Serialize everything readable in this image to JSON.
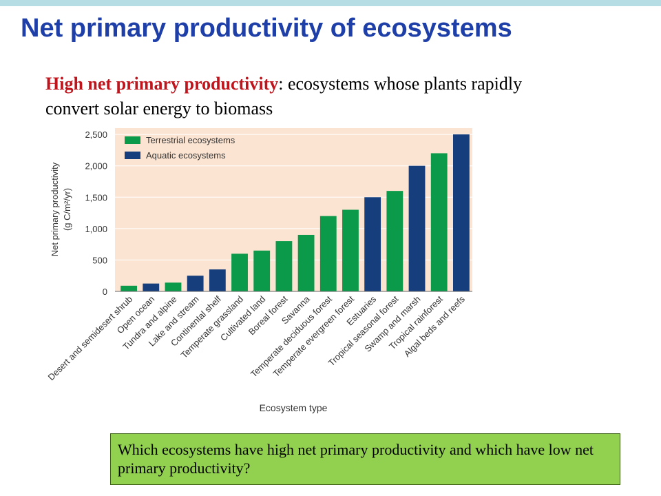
{
  "slide": {
    "title": "Net primary productivity of ecosystems",
    "definition_term": "High net primary productivity",
    "definition_rest": ": ecosystems whose plants rapidly convert solar energy to biomass",
    "question": "Which ecosystems have high net primary productivity and which have low net primary productivity?"
  },
  "colors": {
    "title": "#1f3fa8",
    "term": "#c0141c",
    "terrestrial": "#0a9a4a",
    "aquatic": "#163e7c",
    "plot_bg": "#fbe4d2",
    "question_bg": "#92d050"
  },
  "chart_data": {
    "type": "bar",
    "xlabel": "Ecosystem type",
    "ylabel": "Net primary productivity",
    "ylabel_unit": "(g C/m²/yr)",
    "ylim": [
      0,
      2600
    ],
    "yticks": [
      0,
      500,
      1000,
      1500,
      2000,
      2500
    ],
    "ytick_labels": [
      "0",
      "500",
      "1,000",
      "1,500",
      "2,000",
      "2,500"
    ],
    "grid": true,
    "legend_position": "top-left",
    "legend": [
      {
        "name": "Terrestrial ecosystems",
        "group": "terrestrial"
      },
      {
        "name": "Aquatic ecosystems",
        "group": "aquatic"
      }
    ],
    "categories": [
      "Desert and semidesert shrub",
      "Open ocean",
      "Tundra and alpine",
      "Lake and stream",
      "Continental shelf",
      "Temperate grassland",
      "Cultivated land",
      "Boreal forest",
      "Savanna",
      "Temperate deciduous forest",
      "Temperate evergreen forest",
      "Estuaries",
      "Tropical seasonal forest",
      "Swamp and marsh",
      "Tropical rainforest",
      "Algal beds and reefs"
    ],
    "values": [
      90,
      125,
      140,
      250,
      350,
      600,
      650,
      800,
      900,
      1200,
      1300,
      1500,
      1600,
      2000,
      2200,
      2500
    ],
    "groups": [
      "terrestrial",
      "aquatic",
      "terrestrial",
      "aquatic",
      "aquatic",
      "terrestrial",
      "terrestrial",
      "terrestrial",
      "terrestrial",
      "terrestrial",
      "terrestrial",
      "aquatic",
      "terrestrial",
      "aquatic",
      "terrestrial",
      "aquatic"
    ]
  }
}
